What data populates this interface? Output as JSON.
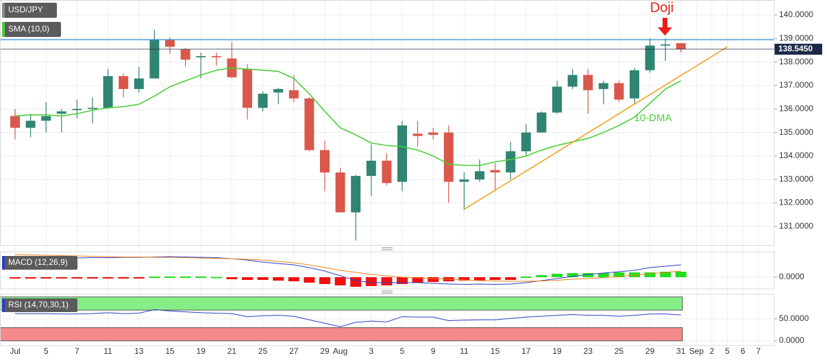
{
  "chart_data": [
    {
      "type": "candlestick",
      "symbol": "USD/JPY",
      "indicator_label": "SMA (10,0)",
      "categories": [
        "Jul",
        null,
        "5",
        null,
        "7",
        null,
        "11",
        null,
        "13",
        null,
        "15",
        null,
        "19",
        null,
        "21",
        null,
        "25",
        null,
        "27",
        null,
        "29",
        "Aug",
        null,
        "3",
        null,
        "5",
        null,
        "9",
        null,
        "11",
        null,
        "15",
        null,
        "17",
        null,
        "19",
        null,
        "23",
        null,
        "25",
        null,
        "29",
        null,
        "31",
        "Sep",
        "2",
        "5",
        "6",
        "7"
      ],
      "open": [
        135.7,
        135.2,
        135.5,
        135.8,
        135.95,
        136.0,
        136.05,
        137.4,
        136.85,
        137.3,
        138.95,
        138.55,
        138.2,
        138.25,
        138.15,
        137.7,
        136.05,
        136.7,
        136.8,
        136.45,
        134.25,
        133.3,
        131.6,
        133.15,
        133.8,
        132.9,
        134.95,
        135.0,
        135.0,
        132.9,
        133.0,
        133.4,
        133.3,
        134.2,
        135.0,
        135.85,
        136.95,
        137.45,
        136.85,
        137.1,
        136.45,
        137.65,
        138.7,
        138.8,
        null,
        null,
        null,
        null,
        null
      ],
      "high": [
        136.0,
        135.8,
        136.3,
        136.0,
        136.4,
        136.5,
        137.7,
        137.5,
        137.8,
        139.38,
        139.05,
        138.6,
        138.4,
        138.4,
        138.85,
        137.9,
        136.75,
        136.9,
        137.45,
        136.5,
        134.65,
        133.5,
        133.2,
        134.5,
        134.1,
        135.5,
        135.5,
        135.2,
        135.3,
        133.3,
        133.85,
        133.7,
        134.6,
        135.35,
        135.9,
        137.2,
        137.7,
        137.7,
        137.2,
        137.2,
        137.75,
        139.0,
        139.0,
        138.8,
        null,
        null,
        null,
        null,
        null
      ],
      "low": [
        134.7,
        134.8,
        135.0,
        135.0,
        135.6,
        135.4,
        136.0,
        136.5,
        136.7,
        137.3,
        138.35,
        137.8,
        137.3,
        137.85,
        137.3,
        135.55,
        135.9,
        136.2,
        136.3,
        134.2,
        132.5,
        131.6,
        130.4,
        132.3,
        132.75,
        132.5,
        134.4,
        134.7,
        132.0,
        131.7,
        132.9,
        132.5,
        133.0,
        134.0,
        135.0,
        135.8,
        136.85,
        135.8,
        136.2,
        136.3,
        136.2,
        137.55,
        138.05,
        138.4,
        null,
        null,
        null,
        null,
        null
      ],
      "close": [
        135.2,
        135.5,
        135.7,
        135.9,
        136.0,
        136.05,
        137.4,
        136.85,
        137.3,
        138.95,
        138.65,
        138.1,
        138.25,
        138.2,
        137.35,
        136.05,
        136.65,
        136.85,
        136.45,
        134.25,
        133.3,
        131.6,
        133.15,
        133.8,
        132.85,
        135.3,
        134.85,
        134.9,
        132.9,
        133.0,
        133.35,
        133.3,
        134.2,
        135.0,
        135.85,
        136.95,
        137.45,
        136.8,
        137.1,
        136.4,
        137.65,
        138.7,
        138.75,
        138.55,
        null,
        null,
        null,
        null,
        null
      ],
      "up_color": "#2f8571",
      "down_color": "#d9584b",
      "sma": {
        "color": "#4ccf3a",
        "values": [
          135.7,
          135.75,
          135.75,
          135.7,
          135.8,
          135.95,
          136.05,
          136.1,
          136.2,
          136.55,
          136.95,
          137.2,
          137.45,
          137.65,
          137.75,
          137.7,
          137.65,
          137.6,
          137.3,
          136.65,
          135.9,
          135.2,
          134.9,
          134.55,
          134.45,
          134.4,
          134.25,
          134.0,
          133.65,
          133.6,
          133.6,
          133.75,
          133.85,
          134.0,
          134.25,
          134.45,
          134.6,
          134.75,
          135.0,
          135.3,
          135.65,
          136.25,
          136.85,
          137.2,
          null,
          null,
          null,
          null,
          null
        ]
      },
      "trendline": {
        "color": "#f5a020",
        "values": [
          null,
          null,
          null,
          null,
          null,
          null,
          null,
          null,
          null,
          null,
          null,
          null,
          null,
          null,
          null,
          null,
          null,
          null,
          null,
          null,
          null,
          null,
          null,
          null,
          null,
          null,
          null,
          null,
          null,
          131.73,
          132.14,
          132.54,
          132.95,
          133.36,
          133.76,
          134.17,
          134.58,
          134.99,
          135.39,
          135.8,
          136.21,
          136.61,
          137.02,
          137.43,
          137.83,
          138.24,
          138.65,
          null,
          null
        ]
      },
      "resistance": {
        "value": 138.95,
        "color": "#2b8fd0"
      },
      "last_price": {
        "value": 138.545,
        "label": "138.5450",
        "color": "#1c2a48"
      },
      "annotations": [
        {
          "text": "Doji",
          "color": "#e8201a"
        },
        {
          "text": "10-DMA",
          "color": "#4ccf3a"
        }
      ],
      "ylim": [
        130.21,
        140.64
      ],
      "yticks": [
        {
          "value": 131,
          "label": "131.0000"
        },
        {
          "value": 132,
          "label": "132.0000"
        },
        {
          "value": 133,
          "label": "133.0000"
        },
        {
          "value": 134,
          "label": "134.0000"
        },
        {
          "value": 135,
          "label": "135.0000"
        },
        {
          "value": 136,
          "label": "136.0000"
        },
        {
          "value": 137,
          "label": "137.0000"
        },
        {
          "value": 138,
          "label": "138.0000"
        },
        {
          "value": 139,
          "label": "139.0000"
        },
        {
          "value": 140,
          "label": "140.0000"
        }
      ],
      "grid": true
    },
    {
      "type": "macd",
      "label": "MACD (12,26,9)",
      "lines": [
        {
          "color": "#2b3fc7",
          "values": [
            2.7,
            2.7,
            2.75,
            2.8,
            2.8,
            2.85,
            2.85,
            2.9,
            2.9,
            2.95,
            3.0,
            2.95,
            2.9,
            2.85,
            2.7,
            2.5,
            2.2,
            2.0,
            1.8,
            1.4,
            0.9,
            0.2,
            -0.5,
            -0.8,
            -0.8,
            -0.8,
            -0.8,
            -0.9,
            -1.0,
            -1.05,
            -1.0,
            -1.05,
            -1.0,
            -0.8,
            -0.5,
            -0.2,
            0.1,
            0.4,
            0.6,
            0.8,
            1.0,
            1.4,
            1.6,
            1.8,
            null,
            null,
            null,
            null,
            null
          ]
        },
        {
          "color": "#f07f1a",
          "values": [
            3.3,
            3.25,
            3.2,
            3.15,
            3.1,
            3.05,
            3.0,
            2.95,
            2.95,
            2.9,
            2.9,
            2.85,
            2.8,
            2.75,
            2.7,
            2.6,
            2.5,
            2.3,
            2.1,
            1.8,
            1.4,
            1.0,
            0.7,
            0.4,
            0.2,
            0.0,
            -0.1,
            -0.2,
            -0.3,
            -0.4,
            -0.5,
            -0.55,
            -0.6,
            -0.6,
            -0.55,
            -0.45,
            -0.3,
            -0.2,
            -0.05,
            0.1,
            0.3,
            0.5,
            0.7,
            0.9,
            null,
            null,
            null,
            null,
            null
          ]
        }
      ],
      "histogram": {
        "up_color": "#1fe01f",
        "down_color": "#f01010",
        "values": [
          -0.2,
          -0.2,
          -0.2,
          -0.2,
          -0.2,
          -0.2,
          -0.1,
          -0.1,
          -0.1,
          0.1,
          0.1,
          0.1,
          0.1,
          0.05,
          -0.3,
          -0.4,
          -0.4,
          -0.5,
          -0.6,
          -0.8,
          -1.0,
          -1.2,
          -1.4,
          -1.3,
          -1.2,
          -1.0,
          -0.8,
          -0.7,
          -0.6,
          -0.5,
          -0.5,
          -0.4,
          -0.4,
          0.1,
          0.3,
          0.5,
          0.6,
          0.6,
          0.6,
          0.7,
          0.7,
          0.7,
          0.8,
          0.8,
          null,
          null,
          null,
          null,
          null
        ]
      },
      "ylim": [
        -1.7,
        3.7
      ],
      "yticks": [
        {
          "value": 0,
          "label": "0.0000"
        }
      ],
      "grid": true
    },
    {
      "type": "rsi",
      "label": "RSI (14,70,30,1)",
      "color": "#2b3fc7",
      "values": [
        62,
        62,
        62,
        61,
        61,
        62,
        64,
        62,
        63,
        71,
        68,
        66,
        64,
        63,
        62,
        55,
        57,
        58,
        56,
        48,
        40,
        32,
        42,
        45,
        43,
        55,
        54,
        54,
        46,
        47,
        48,
        48,
        51,
        54,
        56,
        58,
        60,
        58,
        58,
        56,
        58,
        61,
        61,
        59,
        null,
        null,
        null,
        null,
        null
      ],
      "bands": [
        {
          "from": 70,
          "to": 100,
          "color": "#86ee86"
        },
        {
          "from": 0,
          "to": 30,
          "color": "#f58a8a"
        }
      ],
      "ylim": [
        -11,
        106
      ],
      "yticks": [
        {
          "value": 0,
          "label": "0.0000"
        },
        {
          "value": 50,
          "label": "50.0000"
        }
      ],
      "grid": true
    }
  ]
}
